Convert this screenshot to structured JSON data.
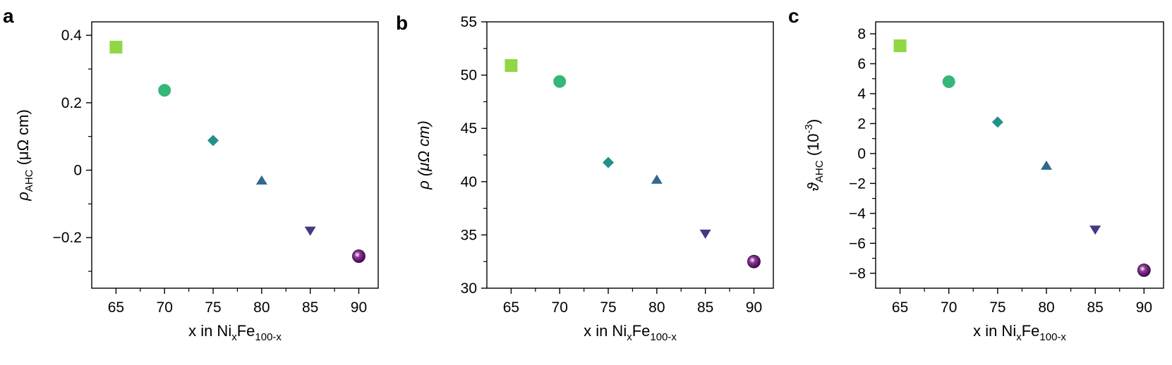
{
  "chart_data": [
    {
      "panel": "a",
      "type": "scatter",
      "xlabel": "x in Ni_xFe_100-x",
      "ylabel": "ρ_AHC (μΩ cm)",
      "xlim": [
        62.5,
        92
      ],
      "ylim": [
        -0.35,
        0.44
      ],
      "x_ticks": [
        65,
        70,
        75,
        80,
        85,
        90
      ],
      "x_minor_ticks": [
        67.5,
        72.5,
        77.5,
        82.5,
        87.5
      ],
      "y_ticks": [
        -0.2,
        0,
        0.2,
        0.4
      ],
      "y_tick_labels": [
        "−0.2",
        "0",
        "0.2",
        "0.4"
      ],
      "y_minor_ticks": [
        -0.3,
        -0.1,
        0.1,
        0.3
      ],
      "points": [
        {
          "x": 65,
          "y": 0.365,
          "marker": "square",
          "color": "#8fd744"
        },
        {
          "x": 70,
          "y": 0.237,
          "marker": "circle",
          "color": "#35b779"
        },
        {
          "x": 75,
          "y": 0.088,
          "marker": "diamond",
          "color": "#21918c"
        },
        {
          "x": 80,
          "y": -0.03,
          "marker": "triangle-up",
          "color": "#31688e"
        },
        {
          "x": 85,
          "y": -0.18,
          "marker": "triangle-down",
          "color": "#443983"
        },
        {
          "x": 90,
          "y": -0.255,
          "marker": "sphere",
          "color": "#440154"
        }
      ]
    },
    {
      "panel": "b",
      "type": "scatter",
      "xlabel": "x in Ni_xFe_100-x",
      "ylabel": "ρ (μΩ cm)",
      "xlim": [
        62.5,
        92
      ],
      "ylim": [
        30,
        55
      ],
      "x_ticks": [
        65,
        70,
        75,
        80,
        85,
        90
      ],
      "x_minor_ticks": [
        67.5,
        72.5,
        77.5,
        82.5,
        87.5
      ],
      "y_ticks": [
        30,
        35,
        40,
        45,
        50,
        55
      ],
      "y_tick_labels": [
        "30",
        "35",
        "40",
        "45",
        "50",
        "55"
      ],
      "y_minor_ticks": [
        32.5,
        37.5,
        42.5,
        47.5,
        52.5
      ],
      "points": [
        {
          "x": 65,
          "y": 50.9,
          "marker": "square",
          "color": "#8fd744"
        },
        {
          "x": 70,
          "y": 49.4,
          "marker": "circle",
          "color": "#35b779"
        },
        {
          "x": 75,
          "y": 41.8,
          "marker": "diamond",
          "color": "#21918c"
        },
        {
          "x": 80,
          "y": 40.2,
          "marker": "triangle-up",
          "color": "#31688e"
        },
        {
          "x": 85,
          "y": 35.1,
          "marker": "triangle-down",
          "color": "#443983"
        },
        {
          "x": 90,
          "y": 32.5,
          "marker": "sphere",
          "color": "#440154"
        }
      ]
    },
    {
      "panel": "c",
      "type": "scatter",
      "xlabel": "x in Ni_xFe_100-x",
      "ylabel": "ϑ_AHC (10^-3)",
      "xlim": [
        62.5,
        92
      ],
      "ylim": [
        -9,
        8.8
      ],
      "x_ticks": [
        65,
        70,
        75,
        80,
        85,
        90
      ],
      "x_minor_ticks": [
        67.5,
        72.5,
        77.5,
        82.5,
        87.5
      ],
      "y_ticks": [
        -8,
        -6,
        -4,
        -2,
        0,
        2,
        4,
        6,
        8
      ],
      "y_tick_labels": [
        "−8",
        "−6",
        "−4",
        "−2",
        "0",
        "2",
        "4",
        "6",
        "8"
      ],
      "y_minor_ticks": [
        -7,
        -5,
        -3,
        -1,
        1,
        3,
        5,
        7
      ],
      "points": [
        {
          "x": 65,
          "y": 7.2,
          "marker": "square",
          "color": "#8fd744"
        },
        {
          "x": 70,
          "y": 4.8,
          "marker": "circle",
          "color": "#35b779"
        },
        {
          "x": 75,
          "y": 2.1,
          "marker": "diamond",
          "color": "#21918c"
        },
        {
          "x": 80,
          "y": -0.8,
          "marker": "triangle-up",
          "color": "#31688e"
        },
        {
          "x": 85,
          "y": -5.1,
          "marker": "triangle-down",
          "color": "#443983"
        },
        {
          "x": 90,
          "y": -7.8,
          "marker": "sphere",
          "color": "#440154"
        }
      ]
    }
  ],
  "labels": {
    "panel_a": "a",
    "panel_b": "b",
    "panel_c": "c",
    "x_main": "x in Ni",
    "x_sub1": "x",
    "x_mid": "Fe",
    "x_sub2": "100-x",
    "ya_rho": "ρ",
    "ya_sub": "AHC",
    "ya_unit": " (μΩ cm)",
    "yb": "ρ (μΩ cm)",
    "yc_theta": "ϑ",
    "yc_sub": "AHC",
    "yc_open": " (10",
    "yc_exp": "-3",
    "yc_close": ")"
  }
}
